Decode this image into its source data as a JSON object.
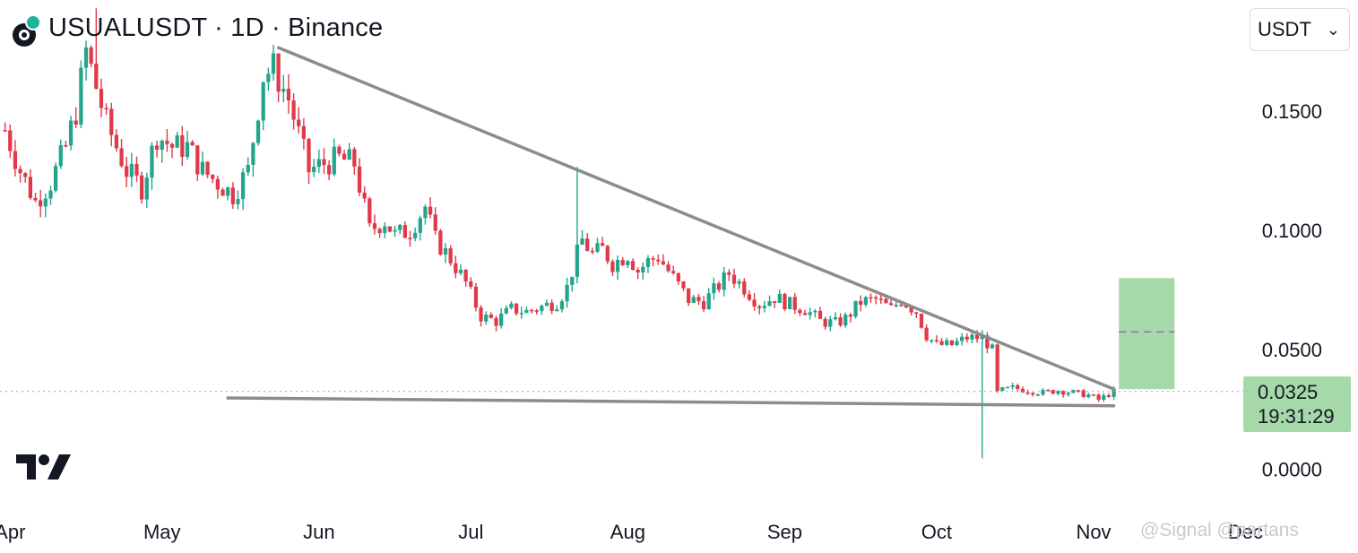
{
  "header": {
    "title": "USUALUSDT · 1D · Binance",
    "currency_select": "USDT"
  },
  "price_label": {
    "value": "0.0325",
    "countdown": "19:31:29"
  },
  "watermark": "@Signal @partans",
  "colors": {
    "up": "#22a58b",
    "down": "#e0394a",
    "trendline": "#8c8c8c",
    "target_zone": "#a6d9a9",
    "price_box": "#a6d9a9"
  },
  "icons": {
    "logo": "usual-coin-icon",
    "dropdown": "chevron-down-icon",
    "brand": "tradingview-logo-icon"
  },
  "chart_data": {
    "type": "candlestick",
    "symbol": "USUALUSDT",
    "interval": "1D",
    "exchange": "Binance",
    "y_ticks": [
      "0.1500",
      "0.1000",
      "0.0500",
      "0.0000"
    ],
    "y_tick_values": [
      0.15,
      0.1,
      0.05,
      0.0
    ],
    "x_ticks": [
      "Apr",
      "May",
      "Jun",
      "Jul",
      "Aug",
      "Sep",
      "Oct",
      "Nov",
      "Dec"
    ],
    "x_tick_dates": [
      "2025-04-01",
      "2025-05-01",
      "2025-06-01",
      "2025-07-01",
      "2025-08-01",
      "2025-09-01",
      "2025-10-01",
      "2025-11-01",
      "2025-12-01"
    ],
    "ylim": [
      -0.0025,
      0.1965
    ],
    "xlim": [
      "2025-03-30",
      "2025-12-25"
    ],
    "grid": false,
    "last_price": 0.0325,
    "price_path": [
      [
        "2025-03-31",
        0.142
      ],
      [
        "2025-04-03",
        0.125
      ],
      [
        "2025-04-06",
        0.112
      ],
      [
        "2025-04-09",
        0.12
      ],
      [
        "2025-04-12",
        0.135
      ],
      [
        "2025-04-14",
        0.15
      ],
      [
        "2025-04-16",
        0.175
      ],
      [
        "2025-04-18",
        0.16
      ],
      [
        "2025-04-20",
        0.145
      ],
      [
        "2025-04-24",
        0.125
      ],
      [
        "2025-04-27",
        0.118
      ],
      [
        "2025-04-30",
        0.14
      ],
      [
        "2025-05-03",
        0.135
      ],
      [
        "2025-05-06",
        0.135
      ],
      [
        "2025-05-09",
        0.125
      ],
      [
        "2025-05-12",
        0.12
      ],
      [
        "2025-05-15",
        0.115
      ],
      [
        "2025-05-18",
        0.125
      ],
      [
        "2025-05-21",
        0.165
      ],
      [
        "2025-05-23",
        0.168
      ],
      [
        "2025-05-26",
        0.155
      ],
      [
        "2025-05-28",
        0.14
      ],
      [
        "2025-05-30",
        0.125
      ],
      [
        "2025-06-02",
        0.128
      ],
      [
        "2025-06-05",
        0.13
      ],
      [
        "2025-06-08",
        0.128
      ],
      [
        "2025-06-11",
        0.1
      ],
      [
        "2025-06-14",
        0.104
      ],
      [
        "2025-06-16",
        0.098
      ],
      [
        "2025-06-19",
        0.1
      ],
      [
        "2025-06-22",
        0.11
      ],
      [
        "2025-06-24",
        0.096
      ],
      [
        "2025-06-27",
        0.088
      ],
      [
        "2025-06-30",
        0.078
      ],
      [
        "2025-07-03",
        0.064
      ],
      [
        "2025-07-06",
        0.062
      ],
      [
        "2025-07-09",
        0.067
      ],
      [
        "2025-07-12",
        0.066
      ],
      [
        "2025-07-15",
        0.068
      ],
      [
        "2025-07-18",
        0.07
      ],
      [
        "2025-07-20",
        0.076
      ],
      [
        "2025-07-22",
        0.09
      ],
      [
        "2025-07-23",
        0.096
      ],
      [
        "2025-07-25",
        0.09
      ],
      [
        "2025-07-27",
        0.092
      ],
      [
        "2025-07-29",
        0.086
      ],
      [
        "2025-08-01",
        0.09
      ],
      [
        "2025-08-03",
        0.083
      ],
      [
        "2025-08-05",
        0.087
      ],
      [
        "2025-08-07",
        0.089
      ],
      [
        "2025-08-10",
        0.08
      ],
      [
        "2025-08-13",
        0.071
      ],
      [
        "2025-08-16",
        0.07
      ],
      [
        "2025-08-19",
        0.077
      ],
      [
        "2025-08-21",
        0.082
      ],
      [
        "2025-08-24",
        0.076
      ],
      [
        "2025-08-27",
        0.069
      ],
      [
        "2025-08-30",
        0.072
      ],
      [
        "2025-09-02",
        0.069
      ],
      [
        "2025-09-05",
        0.067
      ],
      [
        "2025-09-08",
        0.062
      ],
      [
        "2025-09-11",
        0.061
      ],
      [
        "2025-09-13",
        0.063
      ],
      [
        "2025-09-16",
        0.07
      ],
      [
        "2025-09-19",
        0.071
      ],
      [
        "2025-09-22",
        0.067
      ],
      [
        "2025-09-24",
        0.071
      ],
      [
        "2025-09-27",
        0.066
      ],
      [
        "2025-09-29",
        0.056
      ],
      [
        "2025-10-01",
        0.052
      ],
      [
        "2025-10-04",
        0.052
      ],
      [
        "2025-10-07",
        0.055
      ],
      [
        "2025-10-10",
        0.055
      ],
      [
        "2025-10-12",
        0.05
      ],
      [
        "2025-10-13",
        0.032
      ],
      [
        "2025-10-14",
        0.033
      ],
      [
        "2025-10-16",
        0.034
      ],
      [
        "2025-10-19",
        0.033
      ],
      [
        "2025-10-22",
        0.032
      ],
      [
        "2025-10-25",
        0.033
      ],
      [
        "2025-10-28",
        0.032
      ],
      [
        "2025-10-31",
        0.031
      ],
      [
        "2025-11-02",
        0.029
      ],
      [
        "2025-11-05",
        0.0325
      ]
    ],
    "trendlines": [
      {
        "from": [
          "2025-05-24",
          0.1765
        ],
        "to": [
          "2025-11-05",
          0.0335
        ]
      },
      {
        "from": [
          "2025-05-14",
          0.0298
        ],
        "to": [
          "2025-11-05",
          0.0265
        ]
      }
    ],
    "target_zone": {
      "from_date": "2025-11-06",
      "to_date": "2025-11-17",
      "low": 0.0335,
      "high": 0.08,
      "mid": 0.0575
    }
  }
}
